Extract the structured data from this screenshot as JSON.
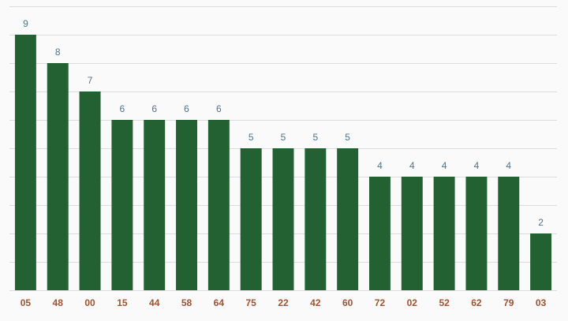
{
  "chart_data": {
    "type": "bar",
    "categories": [
      "05",
      "48",
      "00",
      "15",
      "44",
      "58",
      "64",
      "75",
      "22",
      "42",
      "60",
      "72",
      "02",
      "52",
      "62",
      "79",
      "03"
    ],
    "values": [
      9,
      8,
      7,
      6,
      6,
      6,
      6,
      5,
      5,
      5,
      5,
      4,
      4,
      4,
      4,
      4,
      2
    ],
    "color": "#236133",
    "ylim": [
      0,
      10
    ],
    "yticks": [
      0,
      1,
      2,
      3,
      4,
      5,
      6,
      7,
      8,
      9,
      10
    ],
    "grid": true
  }
}
